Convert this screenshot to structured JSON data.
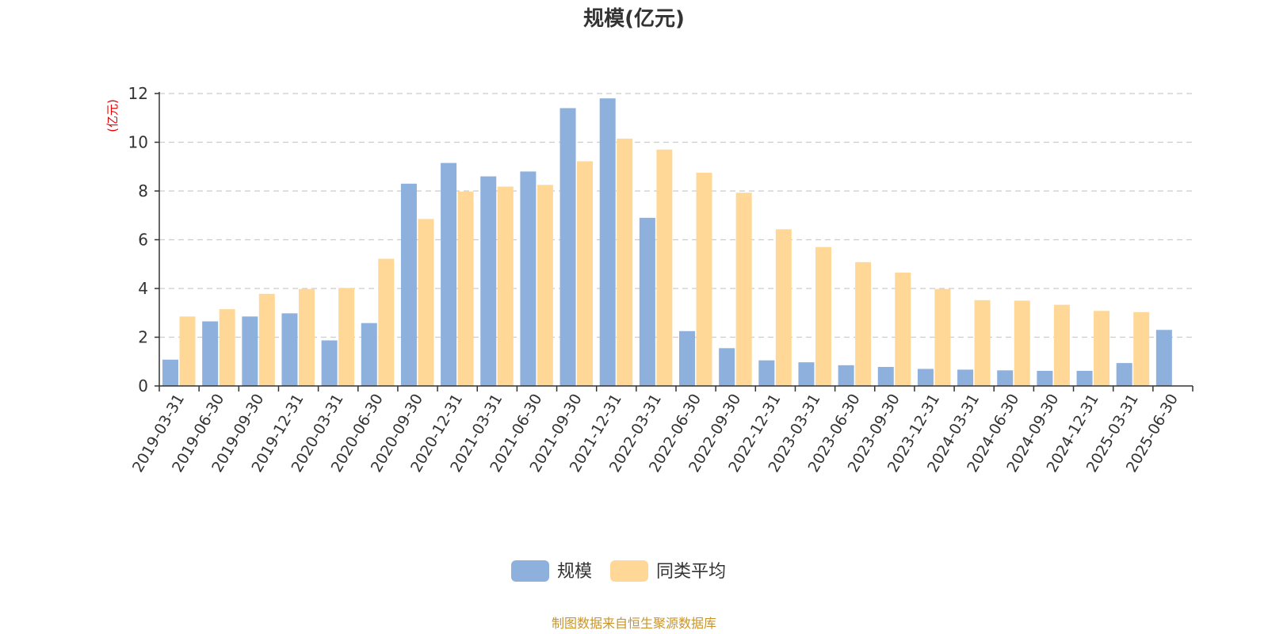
{
  "chart_data": {
    "type": "bar",
    "title": "规模(亿元)",
    "ylabel": "(亿元)",
    "ylim": [
      0,
      12
    ],
    "yticks": [
      0,
      2,
      4,
      6,
      8,
      10,
      12
    ],
    "grid": true,
    "legend_position": "bottom-center",
    "categories": [
      "2019-03-31",
      "2019-06-30",
      "2019-09-30",
      "2019-12-31",
      "2020-03-31",
      "2020-06-30",
      "2020-09-30",
      "2020-12-31",
      "2021-03-31",
      "2021-06-30",
      "2021-09-30",
      "2021-12-31",
      "2022-03-31",
      "2022-06-30",
      "2022-09-30",
      "2022-12-31",
      "2023-03-31",
      "2023-06-30",
      "2023-09-30",
      "2023-12-31",
      "2024-03-31",
      "2024-06-30",
      "2024-09-30",
      "2024-12-31",
      "2025-03-31",
      "2025-06-30"
    ],
    "series": [
      {
        "name": "规模",
        "color": "#8eb0dd",
        "values": [
          1.08,
          2.65,
          2.85,
          2.98,
          1.87,
          2.58,
          8.3,
          9.15,
          8.6,
          8.8,
          11.4,
          11.8,
          6.9,
          2.25,
          1.55,
          1.05,
          0.97,
          0.85,
          0.78,
          0.7,
          0.67,
          0.64,
          0.62,
          0.62,
          0.94,
          2.3
        ]
      },
      {
        "name": "同类平均",
        "color": "#ffd898",
        "values": [
          2.85,
          3.15,
          3.78,
          3.98,
          4.02,
          5.22,
          6.85,
          7.98,
          8.18,
          8.25,
          9.22,
          10.15,
          9.7,
          8.75,
          7.93,
          6.43,
          5.7,
          5.08,
          4.65,
          3.98,
          3.52,
          3.5,
          3.33,
          3.08,
          3.03,
          null
        ]
      }
    ]
  },
  "footer": {
    "source": "制图数据来自恒生聚源数据库"
  },
  "colors": {
    "unit_label": "#e60000",
    "source_text": "#c8952d",
    "axis": "#333333",
    "grid": "#cccccc"
  }
}
